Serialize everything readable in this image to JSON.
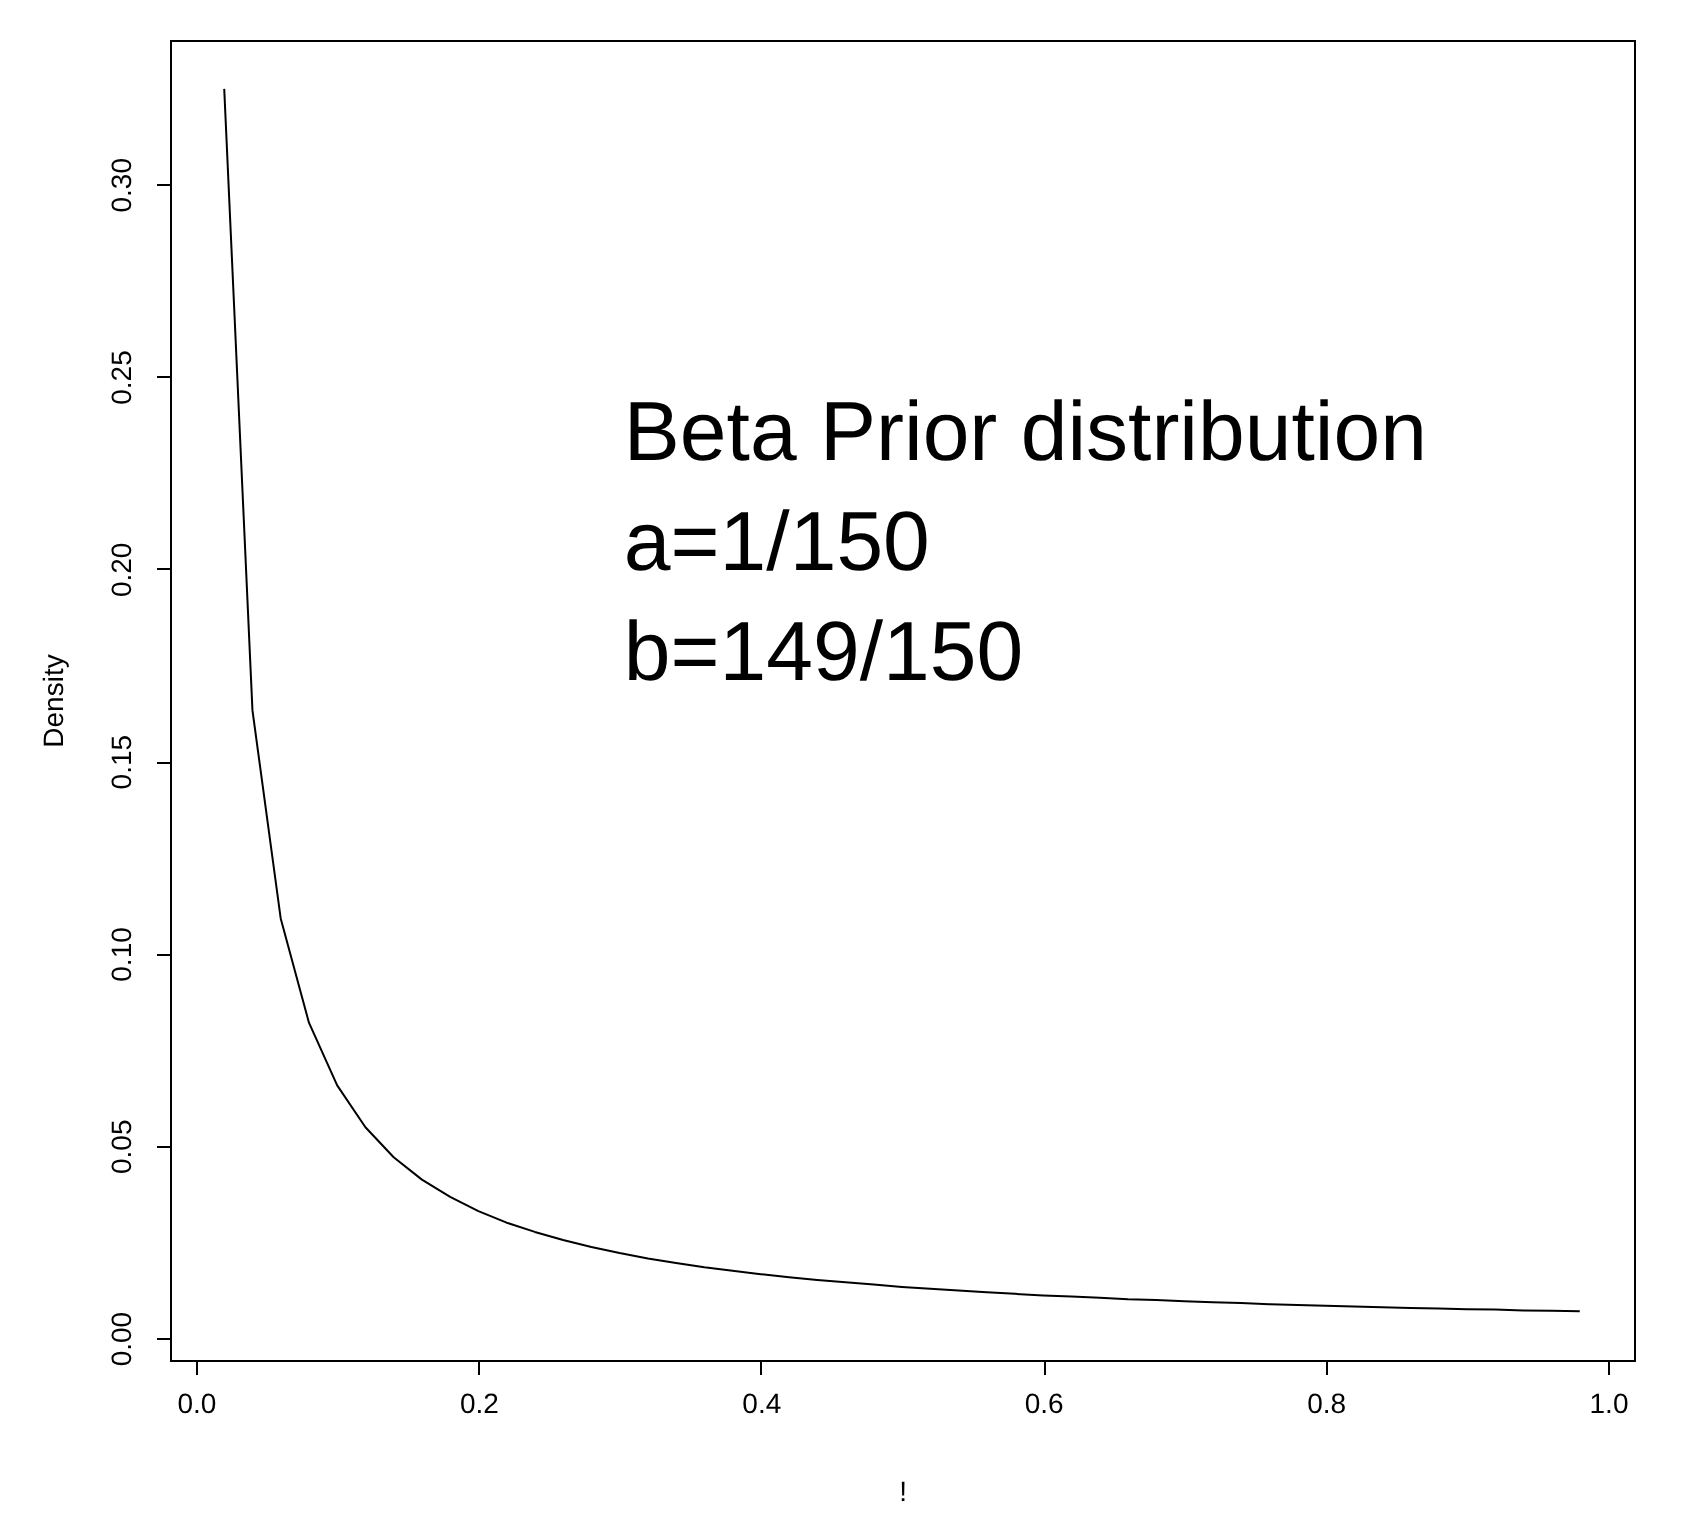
{
  "chart_data": {
    "type": "line",
    "xlabel": "!",
    "ylabel": "Density",
    "annotations": [
      "Beta Prior distribution",
      "a=1/150",
      "b=149/150"
    ],
    "x": [
      0.02,
      0.04,
      0.06,
      0.08,
      0.1,
      0.12,
      0.14,
      0.16,
      0.18,
      0.2,
      0.22,
      0.24,
      0.26,
      0.28,
      0.3,
      0.32,
      0.34,
      0.36,
      0.38,
      0.4,
      0.42,
      0.44,
      0.46,
      0.48,
      0.5,
      0.52,
      0.54,
      0.56,
      0.58,
      0.6,
      0.62,
      0.64,
      0.66,
      0.68,
      0.7,
      0.72,
      0.74,
      0.76,
      0.78,
      0.8,
      0.82,
      0.84,
      0.86,
      0.88,
      0.9,
      0.92,
      0.94,
      0.96,
      0.98
    ],
    "series": [
      {
        "color": "#000000",
        "values": [
          0.3248,
          0.1632,
          0.1091,
          0.082,
          0.0657,
          0.0548,
          0.047,
          0.0412,
          0.0367,
          0.033,
          0.03,
          0.0276,
          0.0255,
          0.0237,
          0.0221,
          0.0207,
          0.0195,
          0.0184,
          0.0175,
          0.0166,
          0.0158,
          0.0151,
          0.0145,
          0.0139,
          0.0133,
          0.0128,
          0.0124,
          0.0119,
          0.0115,
          0.0111,
          0.0108,
          0.0105,
          0.0101,
          0.0099,
          0.0096,
          0.0093,
          0.0091,
          0.0088,
          0.0086,
          0.0084,
          0.0082,
          0.008,
          0.0078,
          0.0077,
          0.0075,
          0.0074,
          0.0072,
          0.0071,
          0.007
        ]
      }
    ],
    "xlim": [
      -0.0184,
      1.0184
    ],
    "ylim": [
      -0.0057,
      0.3375
    ],
    "xticks": [
      {
        "value": 0,
        "label": "0.0"
      },
      0.2,
      0.4,
      0.6,
      0.8,
      {
        "value": 1,
        "label": "1.0"
      }
    ],
    "yticks": [
      {
        "value": 0,
        "label": "0.00"
      },
      0.05,
      {
        "value": 0.1,
        "label": "0.10"
      },
      0.15,
      {
        "value": 0.2,
        "label": "0.20"
      },
      0.25,
      {
        "value": 0.3,
        "label": "0.30"
      }
    ]
  }
}
